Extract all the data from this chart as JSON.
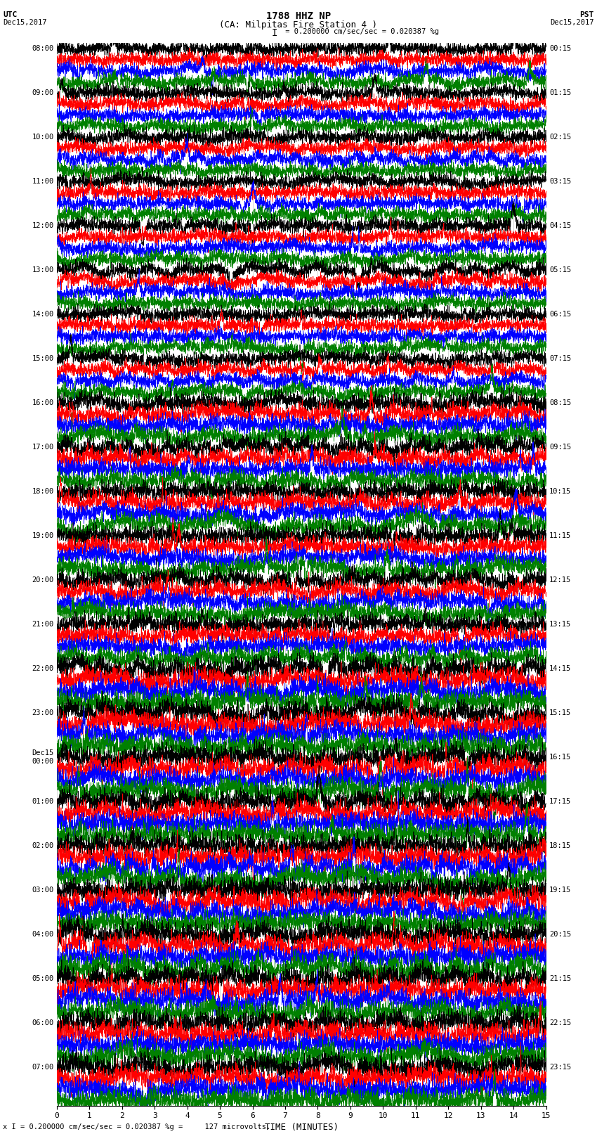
{
  "title_line1": "1788 HHZ NP",
  "title_line2": "(CA: Milpitas Fire Station 4 )",
  "scale_text": "I = 0.200000 cm/sec/sec = 0.020387 %g",
  "footer_text": "x I = 0.200000 cm/sec/sec = 0.020387 %g =     127 microvolts.",
  "xlabel": "TIME (MINUTES)",
  "xlim": [
    0,
    15
  ],
  "xticks": [
    0,
    1,
    2,
    3,
    4,
    5,
    6,
    7,
    8,
    9,
    10,
    11,
    12,
    13,
    14,
    15
  ],
  "trace_colors": [
    "black",
    "red",
    "blue",
    "green"
  ],
  "bg_color": "white",
  "num_hours": 24,
  "traces_per_hour": 4,
  "utc_labels": [
    "08:00",
    "09:00",
    "10:00",
    "11:00",
    "12:00",
    "13:00",
    "14:00",
    "15:00",
    "16:00",
    "17:00",
    "18:00",
    "19:00",
    "20:00",
    "21:00",
    "22:00",
    "23:00",
    "Dec15\n00:00",
    "01:00",
    "02:00",
    "03:00",
    "04:00",
    "05:00",
    "06:00",
    "07:00"
  ],
  "pst_labels": [
    "00:15",
    "01:15",
    "02:15",
    "03:15",
    "04:15",
    "05:15",
    "06:15",
    "07:15",
    "08:15",
    "09:15",
    "10:15",
    "11:15",
    "12:15",
    "13:15",
    "14:15",
    "15:15",
    "16:15",
    "17:15",
    "18:15",
    "19:15",
    "20:15",
    "21:15",
    "22:15",
    "23:15"
  ],
  "grid_color": "#888888",
  "grid_lw": 0.4,
  "trace_lw": 0.5,
  "vgrid_alpha": 0.6
}
